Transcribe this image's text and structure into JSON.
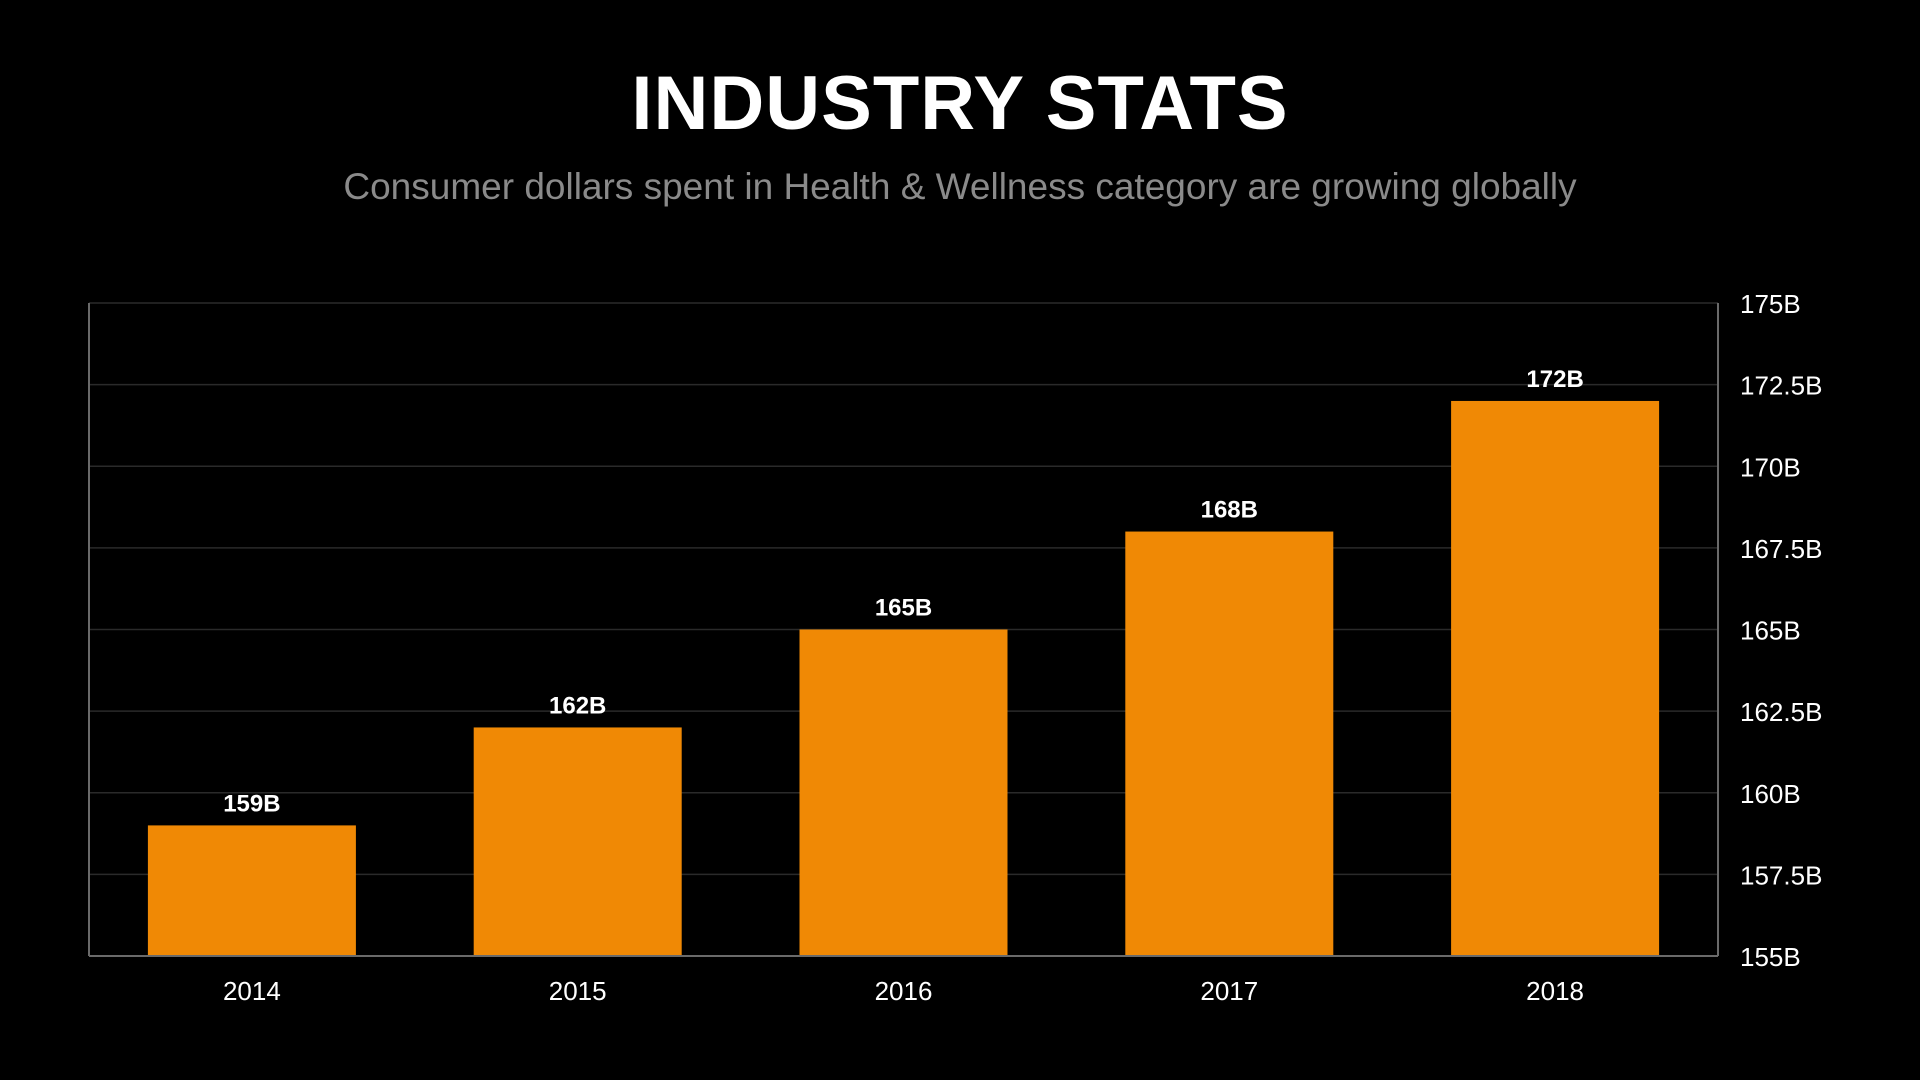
{
  "header": {
    "title": "INDUSTRY STATS",
    "subtitle": "Consumer dollars spent in Health & Wellness category are growing globally"
  },
  "chart_data": {
    "type": "bar",
    "categories": [
      "2014",
      "2015",
      "2016",
      "2017",
      "2018"
    ],
    "values": [
      159,
      162,
      165,
      168,
      172
    ],
    "data_labels": [
      "159B",
      "162B",
      "165B",
      "168B",
      "172B"
    ],
    "ylim": [
      155,
      175
    ],
    "y_ticks": [
      155,
      157.5,
      160,
      162.5,
      165,
      167.5,
      170,
      172.5,
      175
    ],
    "y_tick_labels": [
      "155B",
      "157.5B",
      "160B",
      "162.5B",
      "165B",
      "167.5B",
      "170B",
      "172.5B",
      "175B"
    ],
    "y_axis_side": "right",
    "grid": true,
    "legend": "none"
  },
  "colors": {
    "background": "#000000",
    "bar": "#f08905",
    "title": "#ffffff",
    "subtitle": "#8a8a8a",
    "tick_label": "#ffffff",
    "gridline": "#2a2a2a",
    "axis": "#6a6a6a"
  }
}
